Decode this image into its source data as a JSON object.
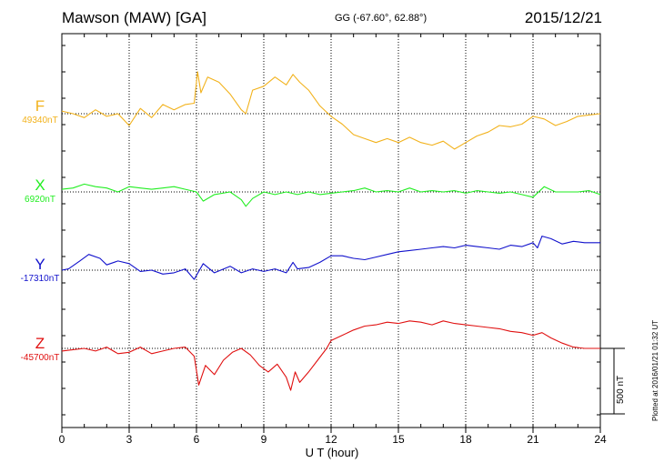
{
  "header": {
    "station": "Mawson (MAW)  [GA]",
    "coordinates": "GG (-67.60°,  62.88°)",
    "date": "2015/12/21"
  },
  "footer": {
    "plotted": "Plotted at 2016/01/21 01:32 UT"
  },
  "chart_data": {
    "type": "line",
    "title": "Mawson (MAW)  [GA]",
    "xlabel": "U T (hour)",
    "ylabel": "",
    "xlim": [
      0,
      24
    ],
    "x_ticks": [
      "0",
      "3",
      "6",
      "9",
      "12",
      "15",
      "18",
      "21",
      "24"
    ],
    "grid": true,
    "scale_bar": {
      "label": "500 nT",
      "value_nT": 500
    },
    "series": [
      {
        "name": "F",
        "baseline_label": "49340nT",
        "baseline_nT": 49340,
        "color": "#f2b21c",
        "x": [
          0,
          0.5,
          1,
          1.5,
          2,
          2.5,
          3,
          3.5,
          4,
          4.5,
          5,
          5.5,
          5.9,
          6.05,
          6.2,
          6.5,
          7,
          7.5,
          8,
          8.2,
          8.5,
          9,
          9.5,
          10,
          10.3,
          10.6,
          11,
          11.5,
          12,
          12.5,
          13,
          13.5,
          14,
          14.5,
          15,
          15.5,
          16,
          16.5,
          17,
          17.5,
          18,
          18.5,
          19,
          19.5,
          20,
          20.5,
          21,
          21.5,
          22,
          22.5,
          23,
          23.5,
          24
        ],
        "y": [
          49360,
          49340,
          49310,
          49370,
          49320,
          49340,
          49250,
          49380,
          49310,
          49410,
          49370,
          49410,
          49420,
          49660,
          49500,
          49620,
          49580,
          49490,
          49370,
          49340,
          49520,
          49550,
          49620,
          49560,
          49640,
          49580,
          49520,
          49400,
          49320,
          49260,
          49180,
          49150,
          49120,
          49150,
          49120,
          49160,
          49120,
          49100,
          49130,
          49070,
          49120,
          49170,
          49200,
          49250,
          49240,
          49260,
          49320,
          49300,
          49250,
          49280,
          49320,
          49330,
          49340
        ]
      },
      {
        "name": "X",
        "baseline_label": "6920nT",
        "baseline_nT": 6920,
        "color": "#22ee22",
        "x": [
          0,
          0.5,
          1,
          1.5,
          2,
          2.5,
          3,
          3.5,
          4,
          4.5,
          5,
          5.5,
          6,
          6.3,
          6.8,
          7.5,
          8,
          8.2,
          8.5,
          9,
          9.5,
          10,
          10.5,
          11,
          11.5,
          12,
          12.5,
          13,
          13.5,
          14,
          14.5,
          15,
          15.5,
          16,
          16.5,
          17,
          17.5,
          18,
          18.5,
          19,
          19.5,
          20,
          20.5,
          21,
          21.5,
          22,
          22.5,
          23,
          23.5,
          24
        ],
        "y": [
          6940,
          6950,
          6980,
          6960,
          6950,
          6920,
          6960,
          6950,
          6940,
          6950,
          6960,
          6940,
          6920,
          6850,
          6900,
          6920,
          6860,
          6810,
          6870,
          6920,
          6900,
          6920,
          6900,
          6920,
          6900,
          6910,
          6920,
          6930,
          6950,
          6920,
          6930,
          6920,
          6950,
          6920,
          6930,
          6920,
          6930,
          6910,
          6930,
          6920,
          6910,
          6920,
          6900,
          6880,
          6960,
          6920,
          6920,
          6920,
          6930,
          6900
        ]
      },
      {
        "name": "Y",
        "baseline_label": "-17310nT",
        "baseline_nT": -17310,
        "color": "#1111cc",
        "x": [
          0,
          0.3,
          0.8,
          1.2,
          1.7,
          2,
          2.5,
          3,
          3.5,
          4,
          4.5,
          5,
          5.5,
          5.9,
          6.3,
          6.8,
          7.5,
          8,
          8.5,
          9,
          9.5,
          10,
          10.3,
          10.5,
          11,
          11.5,
          12,
          12.5,
          13,
          13.5,
          14,
          14.5,
          15,
          15.5,
          16,
          16.5,
          17,
          17.5,
          18,
          18.5,
          19,
          19.5,
          20,
          20.5,
          21,
          21.2,
          21.4,
          21.8,
          22.3,
          22.8,
          23.3,
          24
        ],
        "y": [
          -17310,
          -17300,
          -17240,
          -17190,
          -17220,
          -17270,
          -17240,
          -17260,
          -17320,
          -17310,
          -17340,
          -17330,
          -17300,
          -17380,
          -17260,
          -17330,
          -17280,
          -17330,
          -17300,
          -17320,
          -17300,
          -17330,
          -17250,
          -17300,
          -17290,
          -17250,
          -17200,
          -17200,
          -17220,
          -17230,
          -17210,
          -17190,
          -17170,
          -17160,
          -17150,
          -17140,
          -17130,
          -17140,
          -17120,
          -17130,
          -17140,
          -17150,
          -17120,
          -17130,
          -17100,
          -17140,
          -17050,
          -17070,
          -17110,
          -17090,
          -17100,
          -17100
        ]
      },
      {
        "name": "Z",
        "baseline_label": "-45700nT",
        "baseline_nT": -45700,
        "color": "#e01010",
        "x": [
          0,
          0.5,
          1,
          1.5,
          2,
          2.5,
          3,
          3.5,
          4,
          4.5,
          5,
          5.5,
          5.9,
          6.1,
          6.4,
          6.8,
          7.2,
          7.6,
          8,
          8.4,
          8.8,
          9.2,
          9.6,
          10,
          10.2,
          10.4,
          10.6,
          11,
          11.4,
          11.8,
          12,
          12.5,
          13,
          13.5,
          14,
          14.5,
          15,
          15.5,
          16,
          16.5,
          17,
          17.5,
          18,
          18.5,
          19,
          19.5,
          20,
          20.5,
          21,
          21.4,
          21.8,
          22.3,
          22.8,
          23.3,
          24
        ],
        "y": [
          -45720,
          -45710,
          -45700,
          -45720,
          -45690,
          -45740,
          -45730,
          -45690,
          -45740,
          -45720,
          -45700,
          -45690,
          -45760,
          -45980,
          -45830,
          -45900,
          -45790,
          -45730,
          -45700,
          -45750,
          -45830,
          -45880,
          -45820,
          -45920,
          -46020,
          -45880,
          -45960,
          -45880,
          -45790,
          -45700,
          -45640,
          -45600,
          -45560,
          -45530,
          -45520,
          -45500,
          -45510,
          -45490,
          -45500,
          -45520,
          -45490,
          -45510,
          -45520,
          -45530,
          -45540,
          -45550,
          -45570,
          -45580,
          -45600,
          -45580,
          -45620,
          -45660,
          -45690,
          -45700,
          -45700
        ]
      }
    ]
  }
}
